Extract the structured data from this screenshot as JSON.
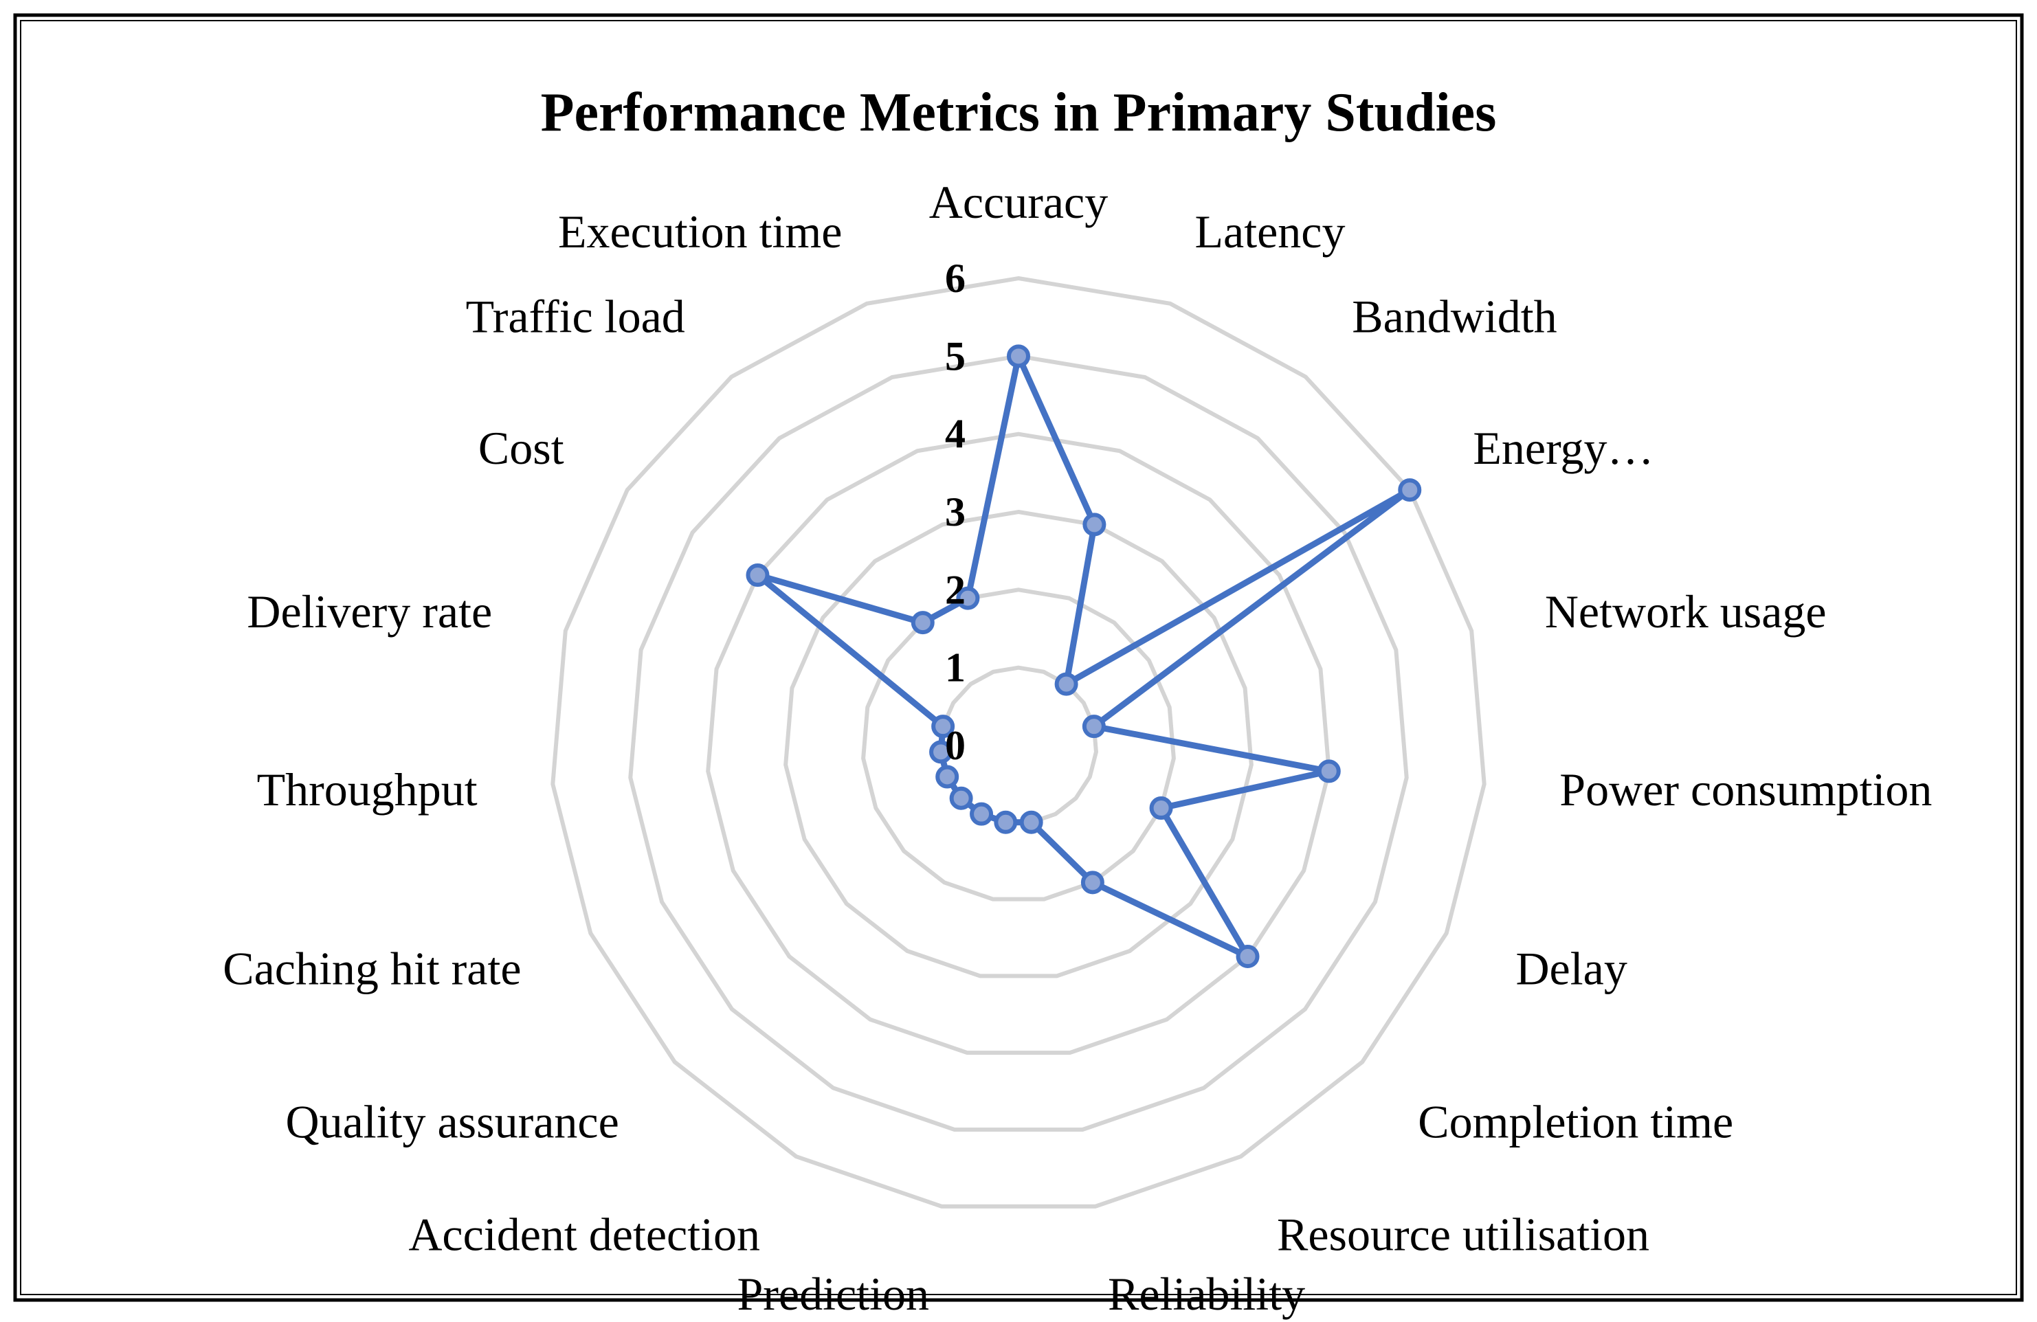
{
  "chart_data": {
    "type": "radar",
    "title": "Performance Metrics in Primary Studies",
    "categories": [
      "Accuracy",
      "Latency",
      "Bandwidth",
      "Energy…",
      "Network usage",
      "Power consumption",
      "Delay",
      "Completion time",
      "Resource utilisation",
      "Reliability",
      "Prediction",
      "Accident detection",
      "Quality assurance",
      "Caching hit rate",
      "Throughput",
      "Delivery rate",
      "Cost",
      "Traffic load",
      "Execution time"
    ],
    "series": [
      {
        "values": [
          5,
          3,
          1,
          6,
          1,
          4,
          2,
          4,
          2,
          1,
          1,
          1,
          1,
          1,
          1,
          1,
          4,
          2,
          2
        ]
      }
    ],
    "rlim": [
      0,
      6
    ],
    "ticks": [
      "0",
      "1",
      "2",
      "3",
      "4",
      "5",
      "6"
    ],
    "grid": true,
    "legend": false,
    "colors": {
      "line": "#4472c4",
      "marker_fill": "#8ea5d6",
      "grid": "#d4d4d4",
      "frame": "#000000"
    }
  }
}
